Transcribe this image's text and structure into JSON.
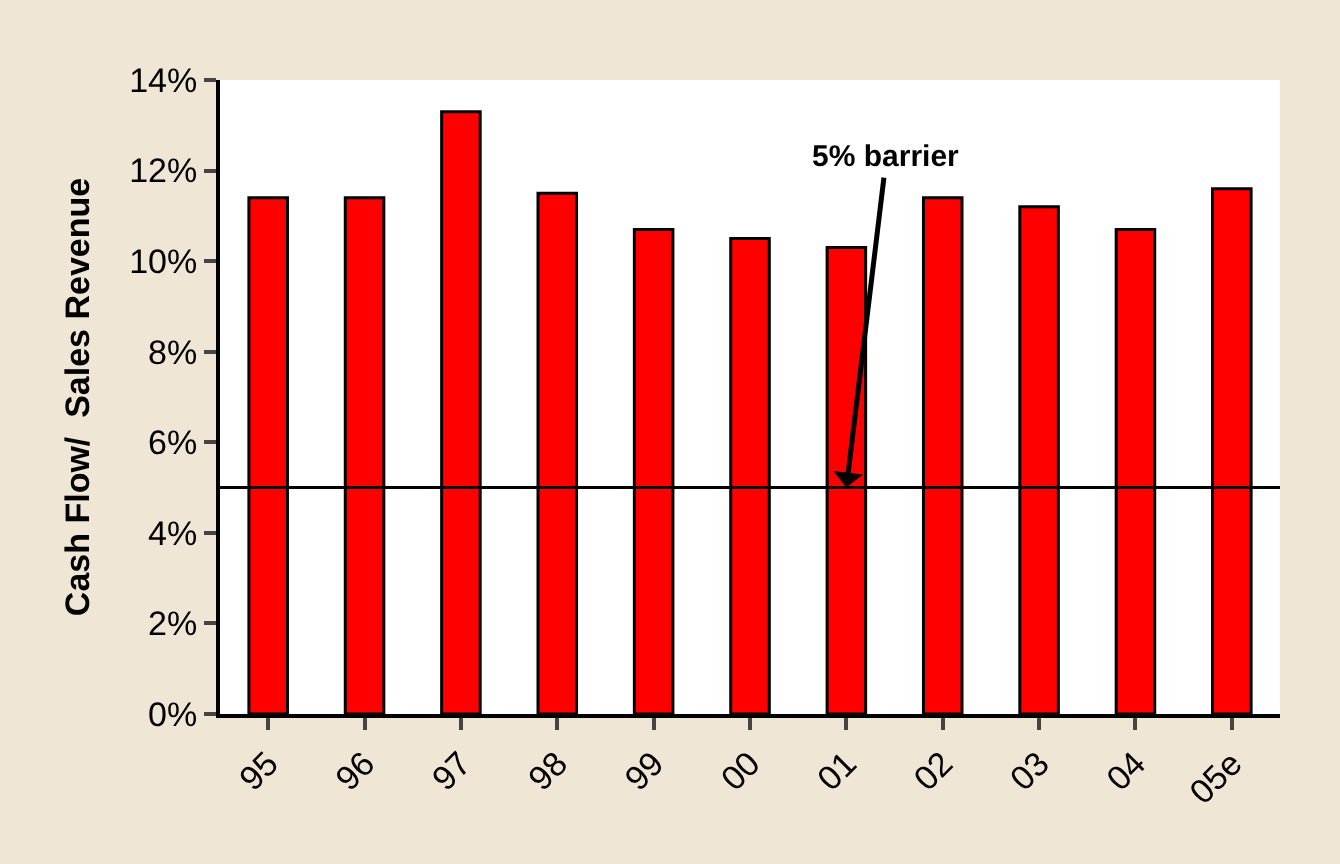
{
  "chart_data": {
    "type": "bar",
    "ylabel": "Cash Flow/  Sales Revenue",
    "categories": [
      "95",
      "96",
      "97",
      "98",
      "99",
      "00",
      "01",
      "02",
      "03",
      "04",
      "05e"
    ],
    "values": [
      11.4,
      11.4,
      13.3,
      11.5,
      10.7,
      10.5,
      10.3,
      11.4,
      11.2,
      10.7,
      11.6
    ],
    "color": "#ff0000",
    "ylim": [
      0,
      14
    ],
    "yticks": [
      {
        "value": 0,
        "label": "0%"
      },
      {
        "value": 2,
        "label": "2%"
      },
      {
        "value": 4,
        "label": "4%"
      },
      {
        "value": 6,
        "label": "6%"
      },
      {
        "value": 8,
        "label": "8%"
      },
      {
        "value": 10,
        "label": "10%"
      },
      {
        "value": 12,
        "label": "12%"
      },
      {
        "value": 14,
        "label": "14%"
      }
    ],
    "ref_lines": [
      {
        "axis": "y",
        "value": 5,
        "color": "#000000"
      }
    ],
    "annotations": [
      {
        "text": "5% barrier",
        "x": "01",
        "y": 5
      }
    ],
    "legend": false
  }
}
